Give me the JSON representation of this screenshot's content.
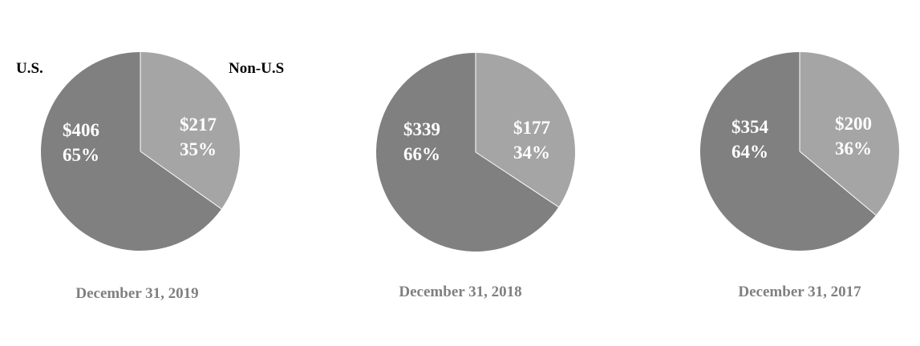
{
  "chart_data": [
    {
      "type": "pie",
      "caption": "December 31, 2019",
      "categories": [
        "U.S.",
        "Non-U.S"
      ],
      "values": [
        406,
        217
      ],
      "value_labels": [
        "$406",
        "$217"
      ],
      "percent_labels": [
        "65%",
        "35%"
      ],
      "colors": [
        "#808080",
        "#a5a5a5"
      ],
      "legend": [
        "U.S.",
        "Non-U.S"
      ]
    },
    {
      "type": "pie",
      "caption": "December 31, 2018",
      "categories": [
        "U.S.",
        "Non-U.S"
      ],
      "values": [
        339,
        177
      ],
      "value_labels": [
        "$339",
        "$177"
      ],
      "percent_labels": [
        "66%",
        "34%"
      ],
      "colors": [
        "#808080",
        "#a5a5a5"
      ]
    },
    {
      "type": "pie",
      "caption": "December 31, 2017",
      "categories": [
        "U.S.",
        "Non-U.S"
      ],
      "values": [
        354,
        200
      ],
      "value_labels": [
        "$354",
        "$200"
      ],
      "percent_labels": [
        "64%",
        "36%"
      ],
      "colors": [
        "#808080",
        "#a5a5a5"
      ]
    }
  ]
}
